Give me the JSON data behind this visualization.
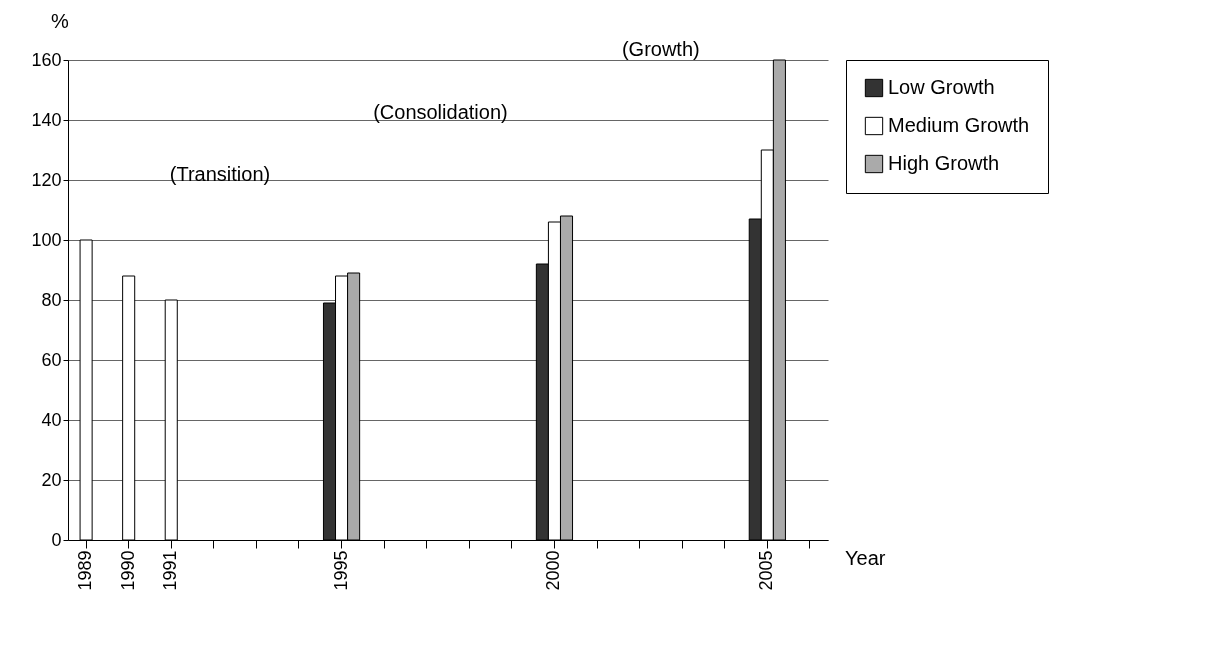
{
  "chart_data": {
    "type": "bar",
    "ylabel": "%",
    "xlabel": "Year",
    "categories": [
      "1989",
      "1990",
      "1991",
      null,
      null,
      null,
      "1995",
      null,
      null,
      null,
      null,
      "2000",
      null,
      null,
      null,
      null,
      "2005",
      null
    ],
    "series": [
      {
        "name": "Low Growth",
        "color": "#333333",
        "values": [
          null,
          null,
          null,
          null,
          null,
          null,
          79,
          null,
          null,
          null,
          null,
          92,
          null,
          null,
          null,
          null,
          107,
          null
        ]
      },
      {
        "name": "Medium Growth",
        "color": "#ffffff",
        "values": [
          100,
          88,
          80,
          null,
          null,
          null,
          88,
          null,
          null,
          null,
          null,
          106,
          null,
          null,
          null,
          null,
          130,
          null
        ]
      },
      {
        "name": "High Growth",
        "color": "#aaaaaa",
        "values": [
          null,
          null,
          null,
          null,
          null,
          null,
          89,
          null,
          null,
          null,
          null,
          108,
          null,
          null,
          null,
          null,
          160,
          null
        ]
      }
    ],
    "ylim": [
      0,
      160
    ],
    "yticks": [
      0,
      20,
      40,
      60,
      80,
      100,
      120,
      140,
      160
    ],
    "grid": "y",
    "legend": "right",
    "annotations": [
      "(Transition)",
      "(Consolidation)",
      "(Growth)"
    ]
  }
}
